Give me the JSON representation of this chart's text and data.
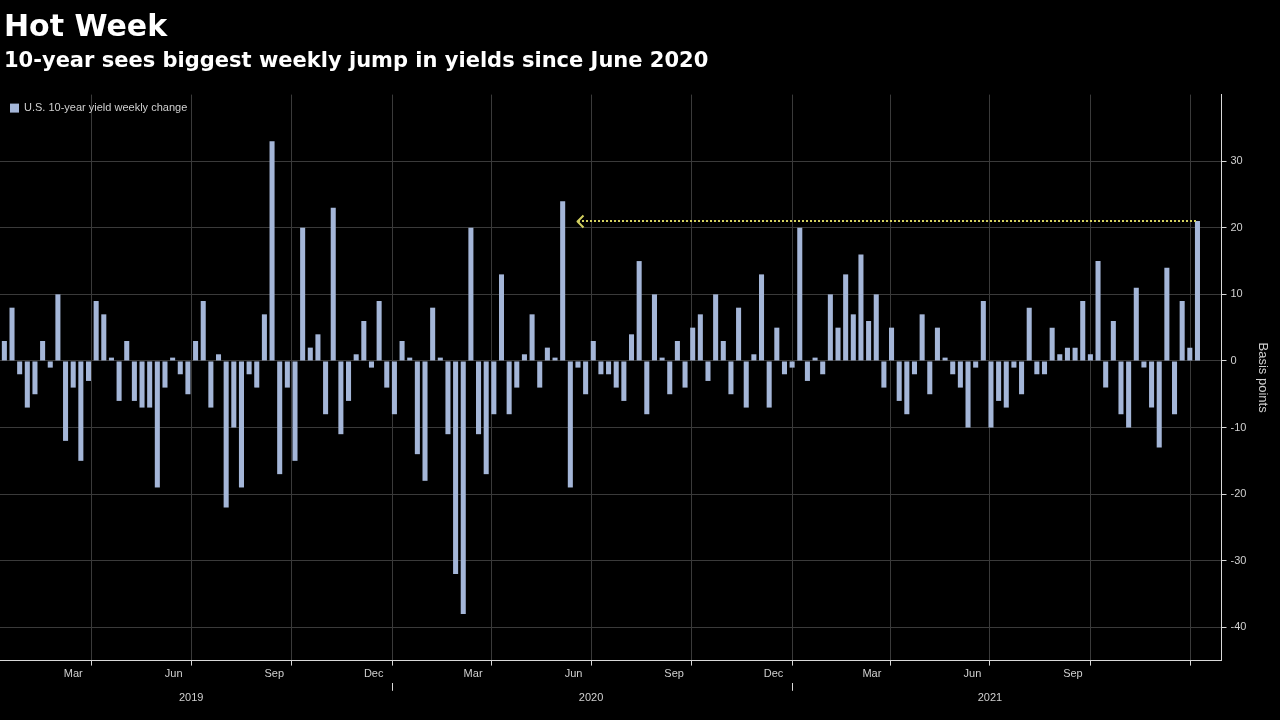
{
  "chart_data": {
    "type": "bar",
    "title": "Hot Week",
    "subtitle": "10-year sees biggest weekly jump in yields since June 2020",
    "ylabel": "Basis points",
    "x": [
      "2019-01-11",
      "2019-01-18",
      "2019-01-25",
      "2019-02-01",
      "2019-02-08",
      "2019-02-15",
      "2019-02-22",
      "2019-03-01",
      "2019-03-08",
      "2019-03-15",
      "2019-03-22",
      "2019-03-29",
      "2019-04-05",
      "2019-04-12",
      "2019-04-19",
      "2019-04-26",
      "2019-05-03",
      "2019-05-10",
      "2019-05-17",
      "2019-05-24",
      "2019-05-31",
      "2019-06-07",
      "2019-06-14",
      "2019-06-21",
      "2019-06-28",
      "2019-07-05",
      "2019-07-12",
      "2019-07-19",
      "2019-07-26",
      "2019-08-02",
      "2019-08-09",
      "2019-08-16",
      "2019-08-23",
      "2019-08-30",
      "2019-09-06",
      "2019-09-13",
      "2019-09-20",
      "2019-09-27",
      "2019-10-04",
      "2019-10-11",
      "2019-10-18",
      "2019-10-25",
      "2019-11-01",
      "2019-11-08",
      "2019-11-15",
      "2019-11-22",
      "2019-11-29",
      "2019-12-06",
      "2019-12-13",
      "2019-12-20",
      "2019-12-27",
      "2020-01-03",
      "2020-01-10",
      "2020-01-17",
      "2020-01-24",
      "2020-01-31",
      "2020-02-07",
      "2020-02-14",
      "2020-02-21",
      "2020-02-28",
      "2020-03-06",
      "2020-03-13",
      "2020-03-20",
      "2020-03-27",
      "2020-04-03",
      "2020-04-10",
      "2020-04-17",
      "2020-04-24",
      "2020-05-01",
      "2020-05-08",
      "2020-05-15",
      "2020-05-22",
      "2020-05-29",
      "2020-06-05",
      "2020-06-12",
      "2020-06-19",
      "2020-06-26",
      "2020-07-03",
      "2020-07-10",
      "2020-07-17",
      "2020-07-24",
      "2020-07-31",
      "2020-08-07",
      "2020-08-14",
      "2020-08-21",
      "2020-08-28",
      "2020-09-04",
      "2020-09-11",
      "2020-09-18",
      "2020-09-25",
      "2020-10-02",
      "2020-10-09",
      "2020-10-16",
      "2020-10-23",
      "2020-10-30",
      "2020-11-06",
      "2020-11-13",
      "2020-11-20",
      "2020-11-27",
      "2020-12-04",
      "2020-12-11",
      "2020-12-18",
      "2020-12-25",
      "2021-01-01",
      "2021-01-08",
      "2021-01-15",
      "2021-01-22",
      "2021-01-29",
      "2021-02-05",
      "2021-02-12",
      "2021-02-19",
      "2021-02-26",
      "2021-03-05",
      "2021-03-12",
      "2021-03-19",
      "2021-03-26",
      "2021-04-02",
      "2021-04-09",
      "2021-04-16",
      "2021-04-23",
      "2021-04-30",
      "2021-05-07",
      "2021-05-14",
      "2021-05-21",
      "2021-05-28",
      "2021-06-04",
      "2021-06-11",
      "2021-06-18",
      "2021-06-25",
      "2021-07-02",
      "2021-07-09",
      "2021-07-16",
      "2021-07-23",
      "2021-07-30",
      "2021-08-06",
      "2021-08-13",
      "2021-08-20",
      "2021-08-27",
      "2021-09-03",
      "2021-09-10",
      "2021-09-17",
      "2021-09-24",
      "2021-10-01",
      "2021-10-08",
      "2021-10-15",
      "2021-10-22",
      "2021-10-29",
      "2021-11-05",
      "2021-11-12",
      "2021-11-19",
      "2021-11-26",
      "2021-12-03",
      "2021-12-10",
      "2021-12-17",
      "2021-12-24",
      "2021-12-31",
      "2022-01-07"
    ],
    "series": [
      {
        "name": "U.S. 10-year yield weekly change",
        "color": "#a4b6d8",
        "values": [
          3,
          8,
          -2,
          -7,
          -5,
          3,
          -1,
          10,
          -12,
          -4,
          -15,
          -3,
          9,
          7,
          0.5,
          -6,
          3,
          -6,
          -7,
          -7,
          -19,
          -4,
          0.5,
          -2,
          -5,
          3,
          9,
          -7,
          1,
          -22,
          -10,
          -19,
          -2,
          -4,
          7,
          33,
          -17,
          -4,
          -15,
          20,
          2,
          4,
          -8,
          23,
          -11,
          -6,
          1,
          6,
          -1,
          9,
          -4,
          -8,
          3,
          0.5,
          -14,
          -18,
          8,
          0.5,
          -11,
          -32,
          -38,
          20,
          -11,
          -17,
          -8,
          13,
          -8,
          -4,
          1,
          7,
          -4,
          2,
          0.5,
          24,
          -19,
          -1,
          -5,
          3,
          -2,
          -2,
          -4,
          -6,
          4,
          15,
          -8,
          10,
          0.5,
          -5,
          3,
          -4,
          5,
          7,
          -3,
          10,
          3,
          -5,
          8,
          -7,
          1,
          13,
          -7,
          5,
          -2,
          -1,
          20,
          -3,
          0.5,
          -2,
          10,
          5,
          13,
          7,
          16,
          6,
          10,
          -4,
          5,
          -6,
          -8,
          -2,
          7,
          -5,
          5,
          0.5,
          -2,
          -4,
          -10,
          -1,
          9,
          -10,
          -6,
          -7,
          -1,
          -5,
          8,
          -2,
          -2,
          5,
          1,
          2,
          2,
          9,
          1,
          15,
          -4,
          6,
          -8,
          -10,
          11,
          -1,
          -7,
          -13,
          14,
          -8,
          9,
          2,
          21
        ]
      },
      {
        "type": "line",
        "color": "#d2cf5f",
        "line_style": "dotted",
        "x": [
          "2020-06-19",
          "2022-01-07"
        ],
        "values": [
          21,
          21
        ]
      }
    ],
    "xlim": [
      "2019-01-07",
      "2022-01-29"
    ],
    "xticks": [
      {
        "value": "2019-03-15",
        "label": "Mar"
      },
      {
        "value": "2019-04-01",
        "label": null
      },
      {
        "value": "2019-06-15",
        "label": "Jun"
      },
      {
        "value": "2019-07-01",
        "label": null
      },
      {
        "value": "2019-09-15",
        "label": "Sep"
      },
      {
        "value": "2019-10-01",
        "label": null
      },
      {
        "value": "2019-12-15",
        "label": "Dec"
      },
      {
        "value": "2020-01-01",
        "label": null
      },
      {
        "value": "2020-03-15",
        "label": "Mar"
      },
      {
        "value": "2020-04-01",
        "label": null
      },
      {
        "value": "2020-06-15",
        "label": "Jun"
      },
      {
        "value": "2020-07-01",
        "label": null
      },
      {
        "value": "2020-09-15",
        "label": "Sep"
      },
      {
        "value": "2020-10-01",
        "label": null
      },
      {
        "value": "2020-12-15",
        "label": "Dec"
      },
      {
        "value": "2021-01-01",
        "label": null
      },
      {
        "value": "2021-03-15",
        "label": "Mar"
      },
      {
        "value": "2021-04-01",
        "label": null
      },
      {
        "value": "2021-06-15",
        "label": "Jun"
      },
      {
        "value": "2021-07-01",
        "label": null
      },
      {
        "value": "2021-09-15",
        "label": "Sep"
      },
      {
        "value": "2021-10-01",
        "label": null
      },
      {
        "value": "2022-01-01",
        "label": null
      }
    ],
    "x2lim": [
      "2019-01-07",
      "2022-01-29"
    ],
    "x2ticks": [
      {
        "value": "2019-07-01",
        "label": "2019"
      },
      {
        "value": "2020-01-01",
        "label": null
      },
      {
        "value": "2020-07-01",
        "label": "2020"
      },
      {
        "value": "2021-01-01",
        "label": null
      },
      {
        "value": "2021-07-01",
        "label": "2021"
      }
    ],
    "ylim": [
      -45,
      40
    ],
    "yticks": [
      -40,
      -30,
      -20,
      -10,
      0,
      10,
      20,
      30
    ],
    "grid": true,
    "legend": "top left"
  }
}
